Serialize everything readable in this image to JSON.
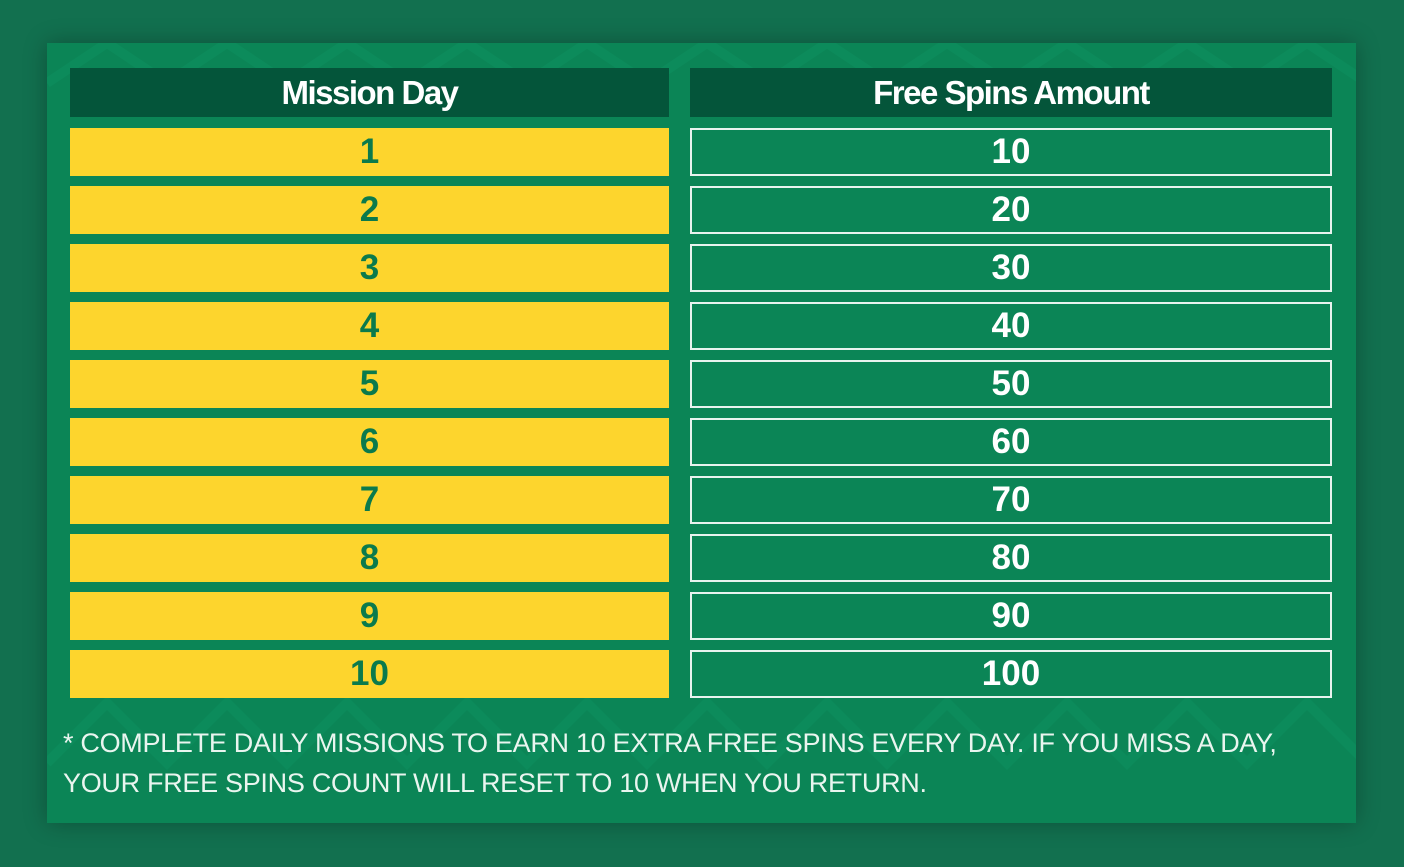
{
  "table": {
    "headers": {
      "mission_day": "Mission Day",
      "free_spins_amount": "Free Spins Amount"
    },
    "rows": [
      {
        "day": "1",
        "spins": "10"
      },
      {
        "day": "2",
        "spins": "20"
      },
      {
        "day": "3",
        "spins": "30"
      },
      {
        "day": "4",
        "spins": "40"
      },
      {
        "day": "5",
        "spins": "50"
      },
      {
        "day": "6",
        "spins": "60"
      },
      {
        "day": "7",
        "spins": "70"
      },
      {
        "day": "8",
        "spins": "80"
      },
      {
        "day": "9",
        "spins": "90"
      },
      {
        "day": "10",
        "spins": "100"
      }
    ]
  },
  "footnote": {
    "line1": "* COMPLETE DAILY MISSIONS TO EARN 10 EXTRA FREE SPINS EVERY DAY. IF YOU MISS A DAY,",
    "line2": "YOUR FREE SPINS COUNT WILL RESET TO 10 WHEN YOU RETURN."
  },
  "colors": {
    "background": "#12704f",
    "panel": "#0b8556",
    "header": "#04553a",
    "day_cell": "#fdd52d",
    "day_text": "#0b7a4c",
    "spins_border": "#e8f3ee"
  }
}
